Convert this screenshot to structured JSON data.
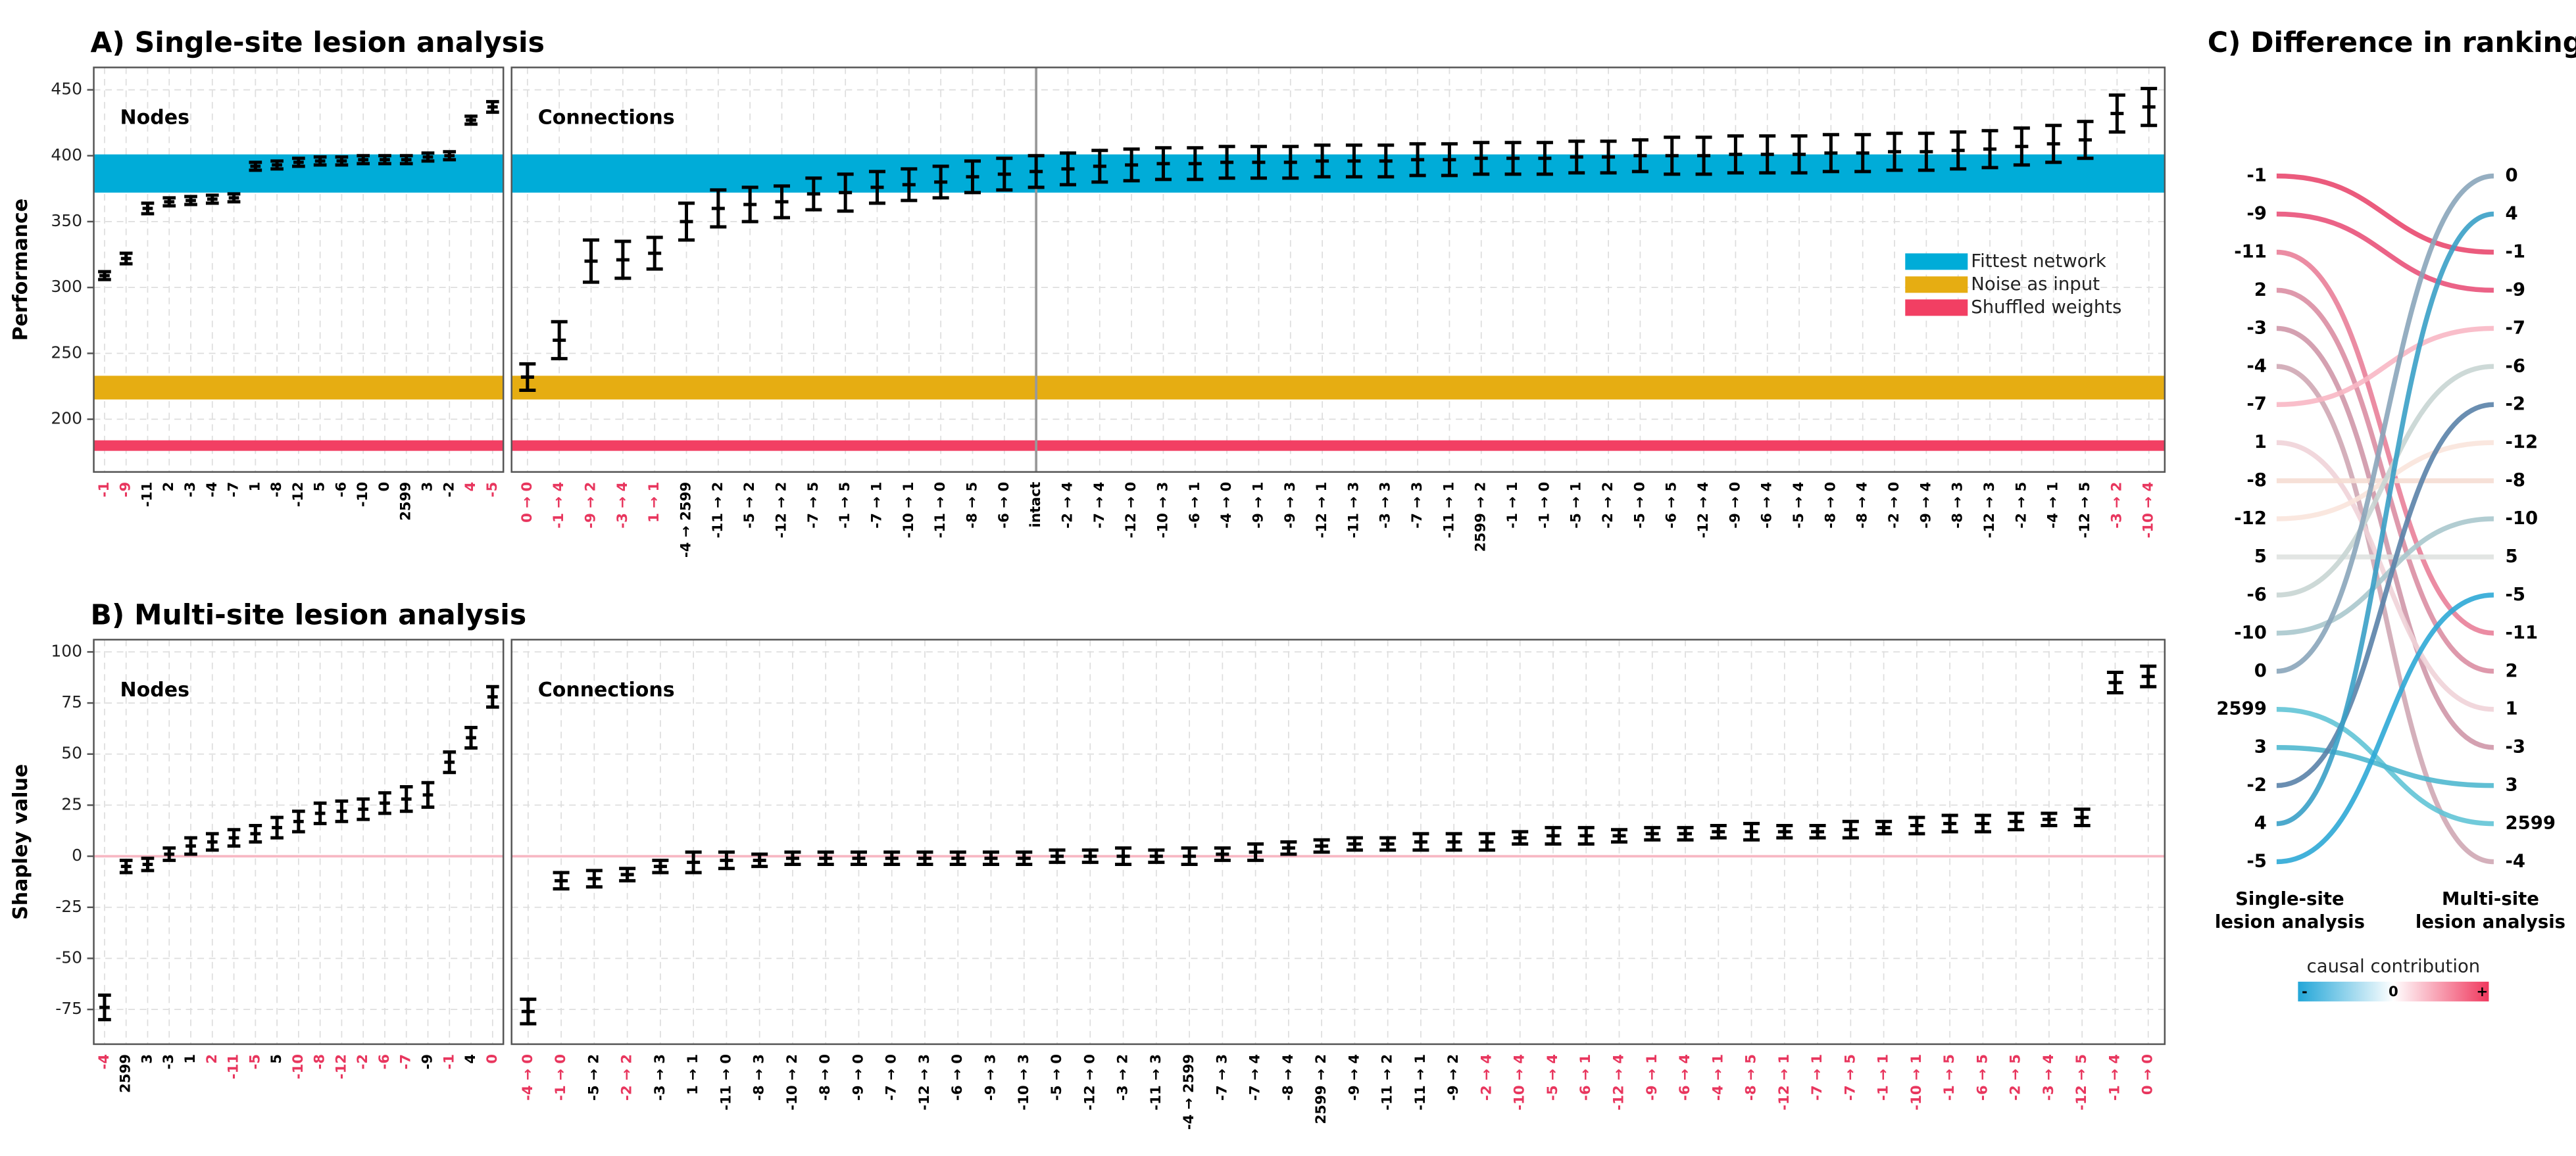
{
  "chart_data": [
    {
      "type": "errorbar",
      "title": "A) Single-site lesion analysis",
      "subtitle": "Nodes",
      "ylabel": "Performance",
      "categories": [
        "-1",
        "-9",
        "-11",
        "2",
        "-3",
        "-4",
        "-7",
        "1",
        "-8",
        "-12",
        "5",
        "-6",
        "-10",
        "0",
        "2599",
        "3",
        "-2",
        "4",
        "-5"
      ],
      "category_colors": [
        "#e8365e",
        "#e8365e",
        "#000",
        "#000",
        "#000",
        "#000",
        "#000",
        "#000",
        "#000",
        "#000",
        "#000",
        "#000",
        "#000",
        "#000",
        "#000",
        "#000",
        "#000",
        "#e8365e",
        "#e8365e"
      ],
      "values": [
        309,
        322,
        360,
        365,
        366,
        367,
        368,
        392,
        393,
        395,
        396,
        396,
        397,
        397,
        397,
        399,
        400,
        427,
        437
      ],
      "errors": [
        3,
        4,
        4,
        3,
        3,
        3,
        3,
        3,
        3,
        3,
        3,
        3,
        3,
        3,
        3,
        3,
        3,
        3,
        4
      ],
      "color": "#000",
      "ylim": [
        160,
        467
      ],
      "yticks": [
        200,
        250,
        300,
        350,
        400,
        450
      ],
      "ytick_labels": true,
      "grid": true,
      "bands": [
        {
          "name": "Fittest network",
          "color": "#00acd8",
          "range": [
            372,
            401
          ]
        },
        {
          "name": "Noise as input",
          "color": "#e6ad12",
          "range": [
            215,
            233
          ]
        },
        {
          "name": "Shuffled weights",
          "color": "#f23f63",
          "range": [
            176,
            184
          ]
        }
      ]
    },
    {
      "type": "errorbar",
      "subtitle": "Connections",
      "categories": [
        "0 → 0",
        "-1 → 4",
        "-9 → 2",
        "-3 → 4",
        "1 → 1",
        "-4 → 2599",
        "-11 → 2",
        "-5 → 2",
        "-12 → 2",
        "-7 → 5",
        "-1 → 5",
        "-7 → 1",
        "-10 → 1",
        "-11 → 0",
        "-8 → 5",
        "-6 → 0",
        "intact",
        "-2 → 4",
        "-7 → 4",
        "-12 → 0",
        "-10 → 3",
        "-6 → 1",
        "-4 → 0",
        "-9 → 1",
        "-9 → 3",
        "-12 → 1",
        "-11 → 3",
        "-3 → 3",
        "-7 → 3",
        "-11 → 1",
        "2599 → 2",
        "-1 → 1",
        "-1 → 0",
        "-5 → 1",
        "-2 → 2",
        "-5 → 0",
        "-6 → 5",
        "-12 → 4",
        "-9 → 0",
        "-6 → 4",
        "-5 → 4",
        "-8 → 0",
        "-8 → 4",
        "-2 → 0",
        "-9 → 4",
        "-8 → 3",
        "-12 → 3",
        "-2 → 5",
        "-4 → 1",
        "-12 → 5",
        "-3 → 2",
        "-10 → 4"
      ],
      "category_colors": [
        "#e8365e",
        "#e8365e",
        "#e8365e",
        "#e8365e",
        "#e8365e",
        "#000",
        "#000",
        "#000",
        "#000",
        "#000",
        "#000",
        "#000",
        "#000",
        "#000",
        "#000",
        "#000",
        "#000",
        "#000",
        "#000",
        "#000",
        "#000",
        "#000",
        "#000",
        "#000",
        "#000",
        "#000",
        "#000",
        "#000",
        "#000",
        "#000",
        "#000",
        "#000",
        "#000",
        "#000",
        "#000",
        "#000",
        "#000",
        "#000",
        "#000",
        "#000",
        "#000",
        "#000",
        "#000",
        "#000",
        "#000",
        "#000",
        "#000",
        "#000",
        "#000",
        "#000",
        "#e8365e",
        "#e8365e"
      ],
      "values": [
        232,
        260,
        320,
        321,
        326,
        350,
        360,
        363,
        365,
        371,
        372,
        376,
        378,
        380,
        384,
        386,
        388,
        390,
        392,
        393,
        394,
        394,
        395,
        395,
        395,
        396,
        396,
        396,
        397,
        397,
        398,
        398,
        398,
        399,
        399,
        400,
        400,
        400,
        401,
        401,
        401,
        402,
        402,
        403,
        403,
        404,
        405,
        407,
        409,
        412,
        432,
        437
      ],
      "errors": [
        10,
        14,
        16,
        14,
        12,
        14,
        14,
        13,
        12,
        12,
        14,
        12,
        12,
        12,
        12,
        12,
        12,
        12,
        12,
        12,
        12,
        12,
        12,
        12,
        12,
        12,
        12,
        12,
        12,
        12,
        12,
        12,
        12,
        12,
        12,
        12,
        14,
        14,
        14,
        14,
        14,
        14,
        14,
        14,
        14,
        14,
        14,
        14,
        14,
        14,
        14,
        14
      ],
      "color": "#000",
      "ylim": [
        160,
        467
      ],
      "yticks": [
        200,
        250,
        300,
        350,
        400,
        450
      ],
      "ytick_labels": false,
      "grid": true,
      "vline": "intact",
      "legend": "center right",
      "bands": [
        {
          "name": "Fittest network",
          "color": "#00acd8",
          "range": [
            372,
            401
          ]
        },
        {
          "name": "Noise as input",
          "color": "#e6ad12",
          "range": [
            215,
            233
          ]
        },
        {
          "name": "Shuffled weights",
          "color": "#f23f63",
          "range": [
            176,
            184
          ]
        }
      ]
    },
    {
      "type": "errorbar",
      "title": "B) Multi-site lesion analysis",
      "subtitle": "Nodes",
      "ylabel": "Shapley value",
      "categories": [
        "-4",
        "2599",
        "3",
        "-3",
        "1",
        "2",
        "-11",
        "-5",
        "5",
        "-10",
        "-8",
        "-12",
        "-2",
        "-6",
        "-7",
        "-9",
        "-1",
        "4",
        "0"
      ],
      "category_colors": [
        "#e8365e",
        "#000",
        "#000",
        "#000",
        "#000",
        "#e8365e",
        "#e8365e",
        "#e8365e",
        "#000",
        "#e8365e",
        "#e8365e",
        "#e8365e",
        "#e8365e",
        "#e8365e",
        "#e8365e",
        "#000",
        "#e8365e",
        "#000",
        "#e8365e"
      ],
      "values": [
        -74,
        -5,
        -4,
        1,
        5,
        7,
        9,
        11,
        14,
        17,
        21,
        22,
        23,
        26,
        28,
        30,
        46,
        58,
        78
      ],
      "errors": [
        6,
        3,
        3,
        3,
        4,
        4,
        4,
        4,
        5,
        5,
        5,
        5,
        5,
        5,
        6,
        6,
        5,
        5,
        5
      ],
      "color": "#000",
      "ylim": [
        -92,
        106
      ],
      "yticks": [
        -75,
        -50,
        -25,
        0,
        25,
        50,
        75,
        100
      ],
      "ytick_labels": true,
      "grid": true,
      "hline": 0,
      "hline_color": "#f7b8c4"
    },
    {
      "type": "errorbar",
      "subtitle": "Connections",
      "categories": [
        "-4 → 0",
        "-1 → 0",
        "-5 → 2",
        "-2 → 2",
        "-3 → 3",
        "1 → 1",
        "-11 → 0",
        "-8 → 3",
        "-10 → 2",
        "-8 → 0",
        "-9 → 0",
        "-7 → 0",
        "-12 → 3",
        "-6 → 0",
        "-9 → 3",
        "-10 → 3",
        "-5 → 0",
        "-12 → 0",
        "-3 → 2",
        "-11 → 3",
        "-4 → 2599",
        "-7 → 3",
        "-7 → 4",
        "-8 → 4",
        "2599 → 2",
        "-9 → 4",
        "-11 → 2",
        "-11 → 1",
        "-9 → 2",
        "-2 → 4",
        "-10 → 4",
        "-5 → 4",
        "-6 → 1",
        "-12 → 4",
        "-9 → 1",
        "-6 → 4",
        "-4 → 1",
        "-8 → 5",
        "-12 → 1",
        "-7 → 1",
        "-7 → 5",
        "-1 → 1",
        "-10 → 1",
        "-1 → 5",
        "-6 → 5",
        "-2 → 5",
        "-3 → 4",
        "-12 → 5",
        "-1 → 4",
        "0 → 0"
      ],
      "category_colors": [
        "#e8365e",
        "#e8365e",
        "#000",
        "#e8365e",
        "#000",
        "#000",
        "#000",
        "#000",
        "#000",
        "#000",
        "#000",
        "#000",
        "#000",
        "#000",
        "#000",
        "#000",
        "#000",
        "#000",
        "#000",
        "#000",
        "#000",
        "#000",
        "#000",
        "#000",
        "#000",
        "#000",
        "#000",
        "#000",
        "#000",
        "#e8365e",
        "#e8365e",
        "#e8365e",
        "#e8365e",
        "#e8365e",
        "#e8365e",
        "#e8365e",
        "#e8365e",
        "#e8365e",
        "#e8365e",
        "#e8365e",
        "#e8365e",
        "#e8365e",
        "#e8365e",
        "#e8365e",
        "#e8365e",
        "#e8365e",
        "#e8365e",
        "#e8365e",
        "#e8365e",
        "#e8365e"
      ],
      "values": [
        -76,
        -12,
        -11,
        -9,
        -5,
        -3,
        -2,
        -2,
        -1,
        -1,
        -1,
        -1,
        -1,
        -1,
        -1,
        -1,
        0,
        0,
        0,
        0,
        0,
        1,
        2,
        4,
        5,
        6,
        6,
        7,
        7,
        7,
        9,
        10,
        10,
        10,
        11,
        11,
        12,
        12,
        12,
        12,
        13,
        14,
        15,
        16,
        16,
        17,
        18,
        19,
        85,
        88
      ],
      "errors": [
        6,
        4,
        4,
        3,
        3,
        5,
        4,
        3,
        3,
        3,
        3,
        3,
        3,
        3,
        3,
        3,
        3,
        3,
        4,
        3,
        4,
        3,
        4,
        3,
        3,
        3,
        3,
        4,
        4,
        4,
        3,
        4,
        4,
        3,
        3,
        3,
        3,
        4,
        3,
        3,
        4,
        3,
        4,
        4,
        4,
        4,
        3,
        4,
        5,
        5
      ],
      "color": "#000",
      "ylim": [
        -92,
        106
      ],
      "yticks": [
        -75,
        -50,
        -25,
        0,
        25,
        50,
        75,
        100
      ],
      "ytick_labels": false,
      "grid": true,
      "hline": 0,
      "hline_color": "#f7b8c4"
    },
    {
      "type": "bump",
      "title": "C) Difference in rankings",
      "left_title": [
        "Single-site",
        "lesion analysis"
      ],
      "right_title": [
        "Multi-site",
        "lesion analysis"
      ],
      "left_labels": [
        "-1",
        "-9",
        "-11",
        "2",
        "-3",
        "-4",
        "-7",
        "1",
        "-8",
        "-12",
        "5",
        "-6",
        "-10",
        "0",
        "2599",
        "3",
        "-2",
        "4",
        "-5"
      ],
      "right_labels": [
        "0",
        "4",
        "-1",
        "-9",
        "-7",
        "-6",
        "-2",
        "-12",
        "-8",
        "-10",
        "5",
        "-5",
        "-11",
        "2",
        "1",
        "-3",
        "3",
        "2599",
        "-4"
      ],
      "colors": [
        "#e9496f",
        "#e9527a",
        "#e98099",
        "#da8ea3",
        "#cf97a9",
        "#cfa7b4",
        "#f8b7c4",
        "#f0d3d8",
        "#f5ddd3",
        "#f9e4dc",
        "#dfe2e0",
        "#c8d5d3",
        "#aac8cd",
        "#8aa5ba",
        "#62c4d6",
        "#50b8cf",
        "#5a82a8",
        "#3aa0c6",
        "#2da8d6"
      ],
      "colorbar": {
        "title": "causal contribution",
        "labels": [
          "-",
          "0",
          "+"
        ],
        "colors": [
          "#22a6d8",
          "#ffffff",
          "#f0385e"
        ]
      }
    }
  ]
}
